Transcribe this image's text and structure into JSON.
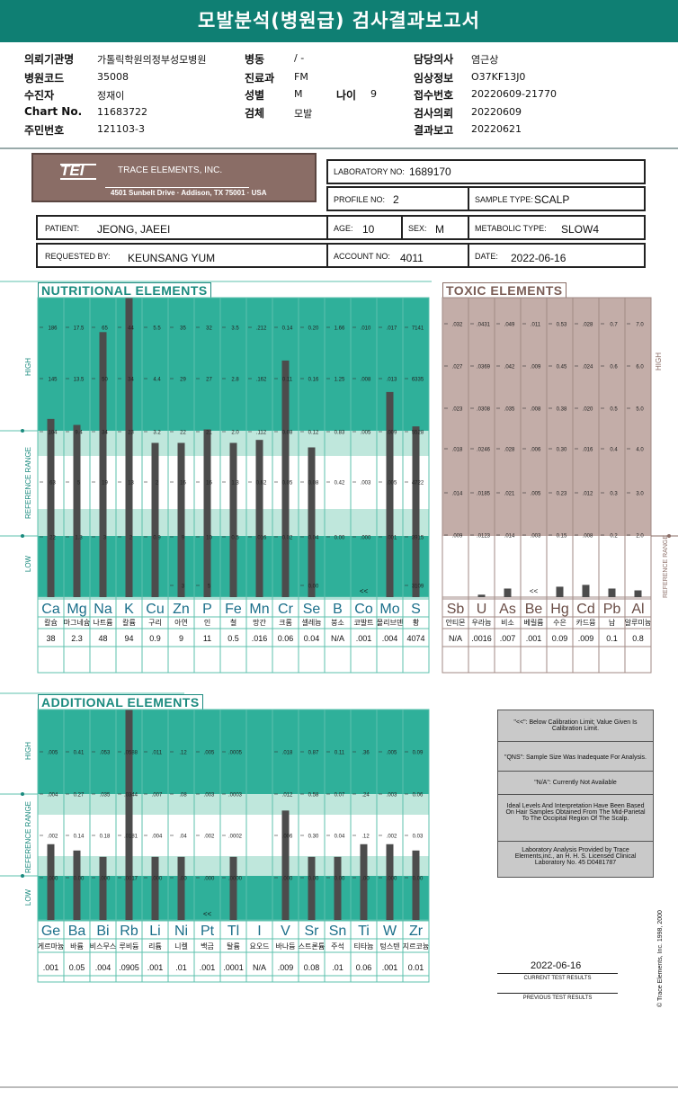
{
  "title": "모발분석(병원급) 검사결과보고서",
  "header": {
    "left": [
      {
        "label": "의뢰기관명",
        "value": "가톨릭학원의정부성모병원"
      },
      {
        "label": "병원코드",
        "value": "35008"
      },
      {
        "label": "수진자",
        "value": "정재이"
      },
      {
        "label": "Chart No.",
        "value": "11683722"
      },
      {
        "label": "주민번호",
        "value": "121103-3"
      }
    ],
    "mid": [
      {
        "label": "병동",
        "value": "/ -"
      },
      {
        "label": "진료과",
        "value": "FM"
      },
      {
        "label": "성별",
        "value": "M"
      },
      {
        "label": "검체",
        "value": "모발"
      }
    ],
    "age_label": "나이",
    "age_value": "9",
    "right": [
      {
        "label": "담당의사",
        "value": "염근상"
      },
      {
        "label": "임상정보",
        "value": "O37KF13J0"
      },
      {
        "label": "접수번호",
        "value": "20220609-21770"
      },
      {
        "label": "검사의뢰",
        "value": "20220609"
      },
      {
        "label": "결과보고",
        "value": "20220621"
      }
    ]
  },
  "lab": {
    "logo_text": "TRACE ELEMENTS, INC.",
    "logo_abbr": "TEI",
    "address": "4501 Sunbelt Drive  ·  Addison, TX 75001  ·  USA",
    "laboratory_no_label": "LABORATORY NO:",
    "laboratory_no": "1689170",
    "profile_no_label": "PROFILE NO:",
    "profile_no": "2",
    "sample_type_label": "SAMPLE TYPE:",
    "sample_type": "SCALP",
    "patient_label": "PATIENT:",
    "patient": "JEONG, JAEEI",
    "age_label": "AGE:",
    "age": "10",
    "sex_label": "SEX:",
    "sex": "M",
    "metabolic_label": "METABOLIC TYPE:",
    "metabolic": "SLOW4",
    "requested_label": "REQUESTED BY:",
    "requested": "KEUNSANG YUM",
    "account_label": "ACCOUNT NO:",
    "account": "4011",
    "date_label": "DATE:",
    "date": "2022-06-16"
  },
  "axis": {
    "high": "HIGH",
    "reference": "REFERENCE RANGE",
    "low": "LOW"
  },
  "chart_data": [
    {
      "type": "bar",
      "title": "NUTRITIONAL ELEMENTS",
      "categories": [
        "Ca",
        "Mg",
        "Na",
        "K",
        "Cu",
        "Zn",
        "P",
        "Fe",
        "Mn",
        "Cr",
        "Se",
        "B",
        "Co",
        "Mo",
        "S"
      ],
      "korean": [
        "칼슘",
        "마그네슘",
        "나트륨",
        "칼륨",
        "구리",
        "아연",
        "인",
        "철",
        "망간",
        "크롬",
        "셀레늄",
        "붕소",
        "코발트",
        "몰리브덴",
        "황"
      ],
      "values": [
        "38",
        "2.3",
        "48",
        "94",
        "0.9",
        "9",
        "11",
        "0.5",
        ".016",
        "0.06",
        "0.04",
        "N/A",
        ".001",
        ".004",
        "4074"
      ],
      "bar_fraction": [
        0.595,
        0.575,
        0.885,
        1.0,
        0.515,
        0.515,
        0.56,
        0.515,
        0.525,
        0.79,
        0.5,
        0,
        0,
        0.685,
        0.57
      ],
      "ticks": [
        [
          "186",
          "145",
          "104",
          "63",
          "22",
          ""
        ],
        [
          "17.5",
          "13.5",
          "9.4",
          "5",
          "1.3",
          ""
        ],
        [
          "65",
          "50",
          "34",
          "19",
          "3",
          ""
        ],
        [
          "44",
          "34",
          "23",
          "13",
          "2",
          ""
        ],
        [
          "5.5",
          "4.4",
          "3.2",
          "2",
          "0.9",
          ""
        ],
        [
          "35",
          "29",
          "22",
          "16",
          "9",
          "3"
        ],
        [
          "32",
          "27",
          "21",
          "16",
          "10",
          "5"
        ],
        [
          "3.5",
          "2.8",
          "2.0",
          "1.3",
          "0.5",
          ""
        ],
        [
          ".212",
          ".162",
          ".112",
          "0.62",
          ".016",
          ""
        ],
        [
          "0.14",
          "0.11",
          "0.08",
          "0.05",
          "0.02",
          ""
        ],
        [
          "0.20",
          "0.16",
          "0.12",
          "0.08",
          "0.04",
          "0.00"
        ],
        [
          "1.66",
          "1.25",
          "0.83",
          "0.42",
          "0.00",
          ""
        ],
        [
          ".010",
          ".008",
          ".005",
          ".003",
          ".000",
          ""
        ],
        [
          ".017",
          ".013",
          ".009",
          ".005",
          ".001",
          ""
        ],
        [
          "7141",
          "6335",
          "5528",
          "4722",
          "3915",
          "3109"
        ]
      ],
      "below_limit": [
        "",
        "",
        "",
        "",
        "",
        "",
        "",
        "",
        "",
        "",
        "",
        "",
        "<<",
        "",
        ""
      ]
    },
    {
      "type": "bar",
      "title": "TOXIC ELEMENTS",
      "categories": [
        "Sb",
        "U",
        "As",
        "Be",
        "Hg",
        "Cd",
        "Pb",
        "Al"
      ],
      "korean": [
        "안티몬",
        "우라늄",
        "비소",
        "베릴륨",
        "수은",
        "카드뮴",
        "납",
        "알루미늄"
      ],
      "values": [
        "N/A",
        ".0016",
        ".007",
        ".001",
        "0.09",
        ".009",
        "0.1",
        "0.8"
      ],
      "bar_fraction": [
        0,
        0.04,
        0.14,
        0,
        0.17,
        0.2,
        0.14,
        0.11
      ],
      "ticks": [
        [
          ".032",
          ".027",
          ".023",
          ".018",
          ".014",
          ".009"
        ],
        [
          ".0431",
          ".0369",
          ".0308",
          ".0246",
          ".0185",
          ".0123"
        ],
        [
          ".049",
          ".042",
          ".035",
          ".028",
          ".021",
          ".014"
        ],
        [
          ".011",
          ".009",
          ".008",
          ".006",
          ".005",
          ".003"
        ],
        [
          "0.53",
          "0.45",
          "0.38",
          "0.30",
          "0.23",
          "0.15"
        ],
        [
          ".028",
          ".024",
          ".020",
          ".016",
          ".012",
          ".008"
        ],
        [
          "0.7",
          "0.6",
          "0.5",
          "0.4",
          "0.3",
          "0.2"
        ],
        [
          "7.0",
          "6.0",
          "5.0",
          "4.0",
          "3.0",
          "2.0"
        ]
      ],
      "below_limit": [
        "",
        "",
        "",
        "<<",
        "",
        "",
        "",
        ""
      ]
    },
    {
      "type": "bar",
      "title": "ADDITIONAL ELEMENTS",
      "categories": [
        "Ge",
        "Ba",
        "Bi",
        "Rb",
        "Li",
        "Ni",
        "Pt",
        "Tl",
        "I",
        "V",
        "Sr",
        "Sn",
        "Ti",
        "W",
        "Zr"
      ],
      "korean": [
        "게르마늄",
        "바륨",
        "비스무스",
        "루비듐",
        "리튬",
        "니켈",
        "백금",
        "탈륨",
        "요오드",
        "바나듐",
        "스트론튬",
        "주석",
        "티타늄",
        "텅스텐",
        "지르코늄"
      ],
      "values": [
        ".001",
        "0.05",
        ".004",
        ".0905",
        ".001",
        ".01",
        ".001",
        ".0001",
        "N/A",
        ".009",
        "0.08",
        ".01",
        "0.06",
        ".001",
        "0.01"
      ],
      "bar_fraction": [
        0.36,
        0.33,
        0.3,
        1.0,
        0.3,
        0.3,
        0,
        0.3,
        0,
        0.52,
        0.3,
        0.3,
        0.36,
        0.36,
        0.33
      ],
      "ticks": [
        [
          ".005",
          "0.41",
          ".053",
          ".0588",
          ".011",
          ".12",
          ".005",
          ".0005",
          "",
          ".018",
          "0.87",
          "0.11",
          ".36",
          ".005",
          "0.09"
        ],
        [
          ".004",
          "0.27",
          ".035",
          ".0344",
          ".007",
          ".08",
          ".003",
          ".0003",
          "",
          ".012",
          "0.58",
          "0.07",
          ".24",
          ".003",
          "0.06"
        ],
        [
          ".002",
          "0.14",
          "0.18",
          ".0181",
          ".004",
          ".04",
          ".002",
          ".0002",
          "",
          ".006",
          "0.30",
          "0.04",
          ".12",
          ".002",
          "0.03"
        ],
        [
          ".000",
          "0.00",
          ".000",
          ".0017",
          ".000",
          ".00",
          ".000",
          ".0000",
          "",
          ".000",
          "0.00",
          "0.00",
          ".00",
          ".000",
          "0.00"
        ]
      ],
      "below_limit": [
        "",
        "",
        "",
        "",
        "",
        "",
        "<<",
        "",
        "",
        "",
        "",
        "",
        "",
        "",
        ""
      ]
    }
  ],
  "legend_notes": [
    "\"<<\": Below Calibration Limit; Value Given Is Calibration Limit.",
    "\"QNS\": Sample Size Was Inadequate For Analysis.",
    "\"N/A\": Currently Not Available",
    "Ideal Levels And Interpretation Have Been Based On Hair Samples Obtained From The Mid-Parietal To The Occipital Region Of The Scalp.",
    "Laboratory Analysis Provided by Trace Elements,inc., an H. H. S. Licensed Clinical Laboratory No. 45 D0481787"
  ],
  "current_date": "2022-06-16",
  "current_label": "CURRENT TEST RESULTS",
  "previous_label": "PREVIOUS TEST RESULTS",
  "copyright": "© Trace Elements, Inc. 1998, 2000",
  "colors": {
    "teal": "#0f7f73",
    "teal_band": "#2fb09a",
    "teal_light": "#bfe7dc",
    "brown": "#8a6d66",
    "brown_band": "#c3ada8",
    "bar": "#4c4c4c"
  }
}
